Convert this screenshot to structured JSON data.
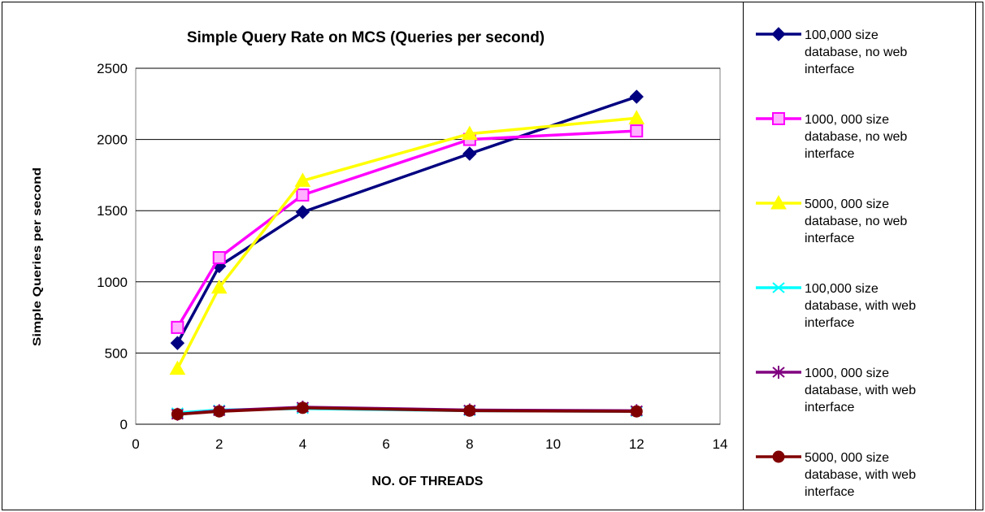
{
  "chart_data": {
    "type": "line",
    "title": "Simple Query Rate on MCS (Queries per second)",
    "xlabel": "NO. OF THREADS",
    "ylabel": "Simple Queries per second",
    "xlim": [
      0,
      14
    ],
    "ylim": [
      0,
      2500
    ],
    "x_ticks": [
      "0",
      "2",
      "4",
      "6",
      "8",
      "10",
      "12",
      "14"
    ],
    "y_ticks": [
      "0",
      "500",
      "1000",
      "1500",
      "2000",
      "2500"
    ],
    "grid": "horizontal",
    "legend_position": "right",
    "x": [
      1,
      2,
      4,
      8,
      12
    ],
    "series": [
      {
        "name": "100,000 size database, no web interface",
        "legend_lines": [
          "100,000 size",
          "database, no web",
          "interface"
        ],
        "color": "#000080",
        "marker": "diamond",
        "values": [
          570,
          1110,
          1490,
          1900,
          2300
        ]
      },
      {
        "name": "1000, 000 size database, no web interface",
        "legend_lines": [
          "1000, 000 size",
          "database, no web",
          "interface"
        ],
        "color": "#FF00FF",
        "marker": "square",
        "values": [
          680,
          1170,
          1610,
          2000,
          2060
        ]
      },
      {
        "name": "5000, 000 size database, no web interface",
        "legend_lines": [
          "5000, 000 size",
          "database, no web",
          "interface"
        ],
        "color": "#FFFF00",
        "marker": "triangle",
        "values": [
          390,
          960,
          1710,
          2040,
          2150
        ]
      },
      {
        "name": "100,000 size database, with web interface",
        "legend_lines": [
          "100,000 size",
          "database, with web",
          "interface"
        ],
        "color": "#00FFFF",
        "marker": "x",
        "values": [
          80,
          100,
          110,
          95,
          90
        ]
      },
      {
        "name": "1000, 000 size database, with web interface",
        "legend_lines": [
          "1000, 000 size",
          "database, with web",
          "interface"
        ],
        "color": "#800080",
        "marker": "star",
        "values": [
          70,
          95,
          120,
          100,
          95
        ]
      },
      {
        "name": "5000, 000 size database, with web interface",
        "legend_lines": [
          "5000, 000 size",
          "database, with web",
          "interface"
        ],
        "color": "#800000",
        "marker": "circle",
        "values": [
          70,
          90,
          115,
          95,
          90
        ]
      }
    ]
  }
}
